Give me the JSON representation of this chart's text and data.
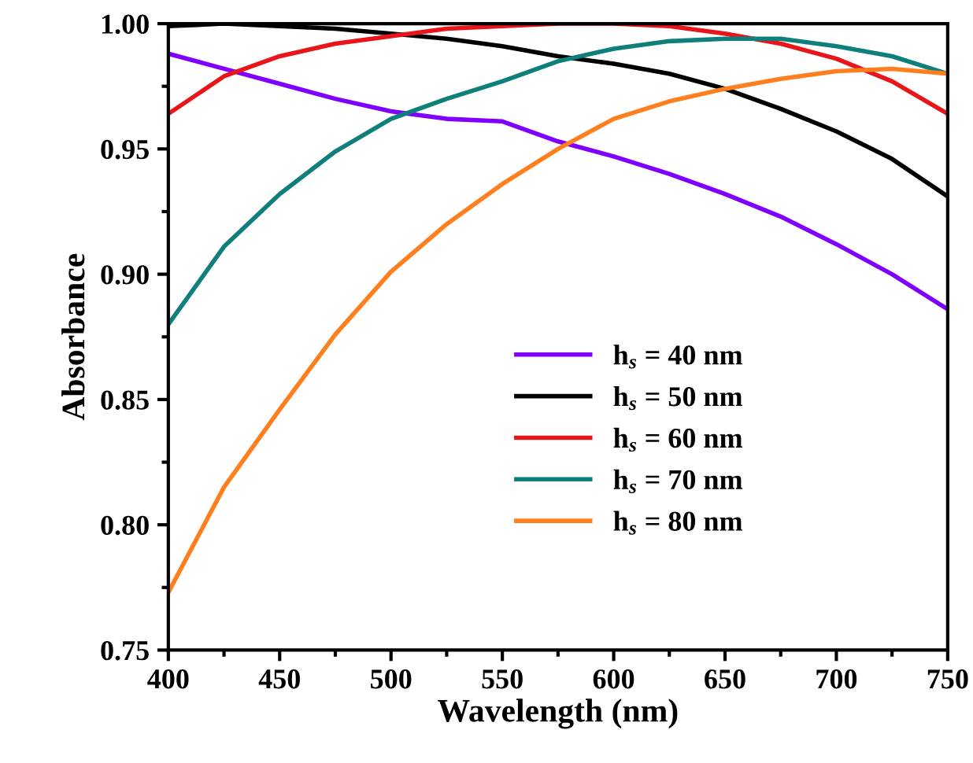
{
  "chart_data": {
    "type": "line",
    "xlabel": "Wavelength (nm)",
    "ylabel": "Absorbance",
    "x": [
      400,
      425,
      450,
      475,
      500,
      525,
      550,
      575,
      600,
      625,
      650,
      675,
      700,
      725,
      750
    ],
    "xlim": [
      400,
      750
    ],
    "xticks": [
      400,
      450,
      500,
      550,
      600,
      650,
      700,
      750
    ],
    "ylim": [
      0.75,
      1.0
    ],
    "yticks": [
      {
        "value": 0.75,
        "label": "0.75"
      },
      {
        "value": 0.8,
        "label": "0.80"
      },
      {
        "value": 0.85,
        "label": "0.85"
      },
      {
        "value": 0.9,
        "label": "0.90"
      },
      {
        "value": 0.95,
        "label": "0.95"
      },
      {
        "value": 1.0,
        "label": "1.00"
      }
    ],
    "grid": false,
    "legend": "lower right",
    "marker": "none",
    "line_style": "solid",
    "series": [
      {
        "name": "h$_{s}$ = 40 nm",
        "color": "#8000ff",
        "values": [
          0.988,
          0.982,
          0.976,
          0.97,
          0.965,
          0.962,
          0.961,
          0.953,
          0.947,
          0.94,
          0.932,
          0.923,
          0.912,
          0.9,
          0.886
        ]
      },
      {
        "name": "h$_{s}$ = 50 nm",
        "color": "#000000",
        "values": [
          0.999,
          1.0,
          0.999,
          0.998,
          0.996,
          0.994,
          0.991,
          0.987,
          0.984,
          0.98,
          0.974,
          0.966,
          0.957,
          0.946,
          0.931
        ]
      },
      {
        "name": "h$_{s}$ = 60 nm",
        "color": "#e8161b",
        "values": [
          0.964,
          0.979,
          0.987,
          0.992,
          0.995,
          0.998,
          0.999,
          1.0,
          1.0,
          0.999,
          0.996,
          0.992,
          0.986,
          0.977,
          0.964
        ]
      },
      {
        "name": "h$_{s}$ = 70 nm",
        "color": "#0e7f7a",
        "values": [
          0.88,
          0.911,
          0.932,
          0.949,
          0.962,
          0.97,
          0.977,
          0.985,
          0.99,
          0.993,
          0.994,
          0.994,
          0.991,
          0.987,
          0.98
        ]
      },
      {
        "name": "h$_{s}$ = 80 nm",
        "color": "#ff7f1e",
        "values": [
          0.773,
          0.815,
          0.846,
          0.876,
          0.901,
          0.92,
          0.936,
          0.95,
          0.962,
          0.969,
          0.974,
          0.978,
          0.981,
          0.982,
          0.98
        ]
      }
    ]
  }
}
